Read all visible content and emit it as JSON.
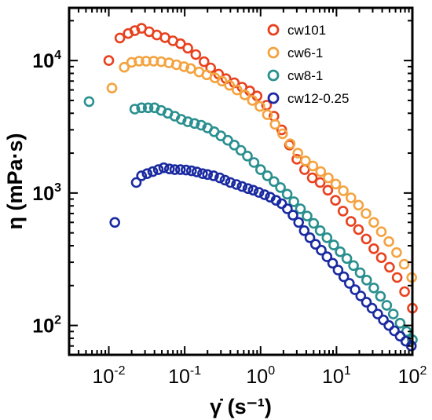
{
  "chart_data": {
    "type": "scatter",
    "title": "",
    "xlabel": "γ̇ (s⁻¹)",
    "ylabel": "η (mPa·s)",
    "xscale": "log",
    "yscale": "log",
    "xlim": [
      0.003,
      100
    ],
    "ylim": [
      60,
      25000
    ],
    "x_ticks": [
      {
        "base": "10",
        "exp": "-2"
      },
      {
        "base": "10",
        "exp": "-1"
      },
      {
        "base": "10",
        "exp": "0"
      },
      {
        "base": "10",
        "exp": "1"
      },
      {
        "base": "10",
        "exp": "2"
      }
    ],
    "y_ticks": [
      {
        "base": "10",
        "exp": "2"
      },
      {
        "base": "10",
        "exp": "3"
      },
      {
        "base": "10",
        "exp": "4"
      }
    ],
    "legend_position": "top-right",
    "grid": false,
    "series": [
      {
        "name": "cw101",
        "color": "#e8411e",
        "x": [
          0.01,
          0.014,
          0.018,
          0.022,
          0.027,
          0.034,
          0.043,
          0.055,
          0.07,
          0.088,
          0.11,
          0.14,
          0.18,
          0.22,
          0.28,
          0.35,
          0.45,
          0.57,
          0.72,
          0.9,
          1.2,
          1.5,
          1.9,
          2.4,
          3.0,
          3.8,
          4.8,
          6.1,
          7.7,
          9.7,
          12.2,
          15.5,
          19.5,
          24.7,
          31,
          39,
          50,
          63,
          79,
          100
        ],
        "y": [
          10000,
          14800,
          16000,
          16800,
          17500,
          16500,
          15600,
          14900,
          14100,
          13400,
          12400,
          11100,
          9800,
          8800,
          7900,
          7300,
          6800,
          6300,
          5900,
          5400,
          4600,
          3800,
          3000,
          2300,
          1800,
          1500,
          1300,
          1200,
          1050,
          880,
          730,
          610,
          530,
          450,
          380,
          325,
          275,
          230,
          180,
          135
        ]
      },
      {
        "name": "cw6-1",
        "color": "#f4a340",
        "x": [
          0.011,
          0.016,
          0.02,
          0.025,
          0.031,
          0.039,
          0.049,
          0.062,
          0.078,
          0.098,
          0.12,
          0.155,
          0.195,
          0.25,
          0.31,
          0.39,
          0.49,
          0.62,
          0.78,
          0.98,
          1.23,
          1.55,
          1.95,
          2.45,
          3.1,
          3.9,
          4.9,
          6.2,
          7.8,
          9.8,
          12.3,
          15.5,
          19.5,
          24.5,
          31,
          39,
          49,
          62,
          78,
          98
        ],
        "y": [
          6200,
          8900,
          9700,
          9900,
          9900,
          9900,
          9800,
          9600,
          9300,
          9000,
          8700,
          8200,
          7800,
          7400,
          7000,
          6500,
          6000,
          5500,
          5000,
          4500,
          3900,
          3300,
          2800,
          2350,
          2000,
          1750,
          1600,
          1450,
          1300,
          1170,
          1040,
          920,
          810,
          700,
          600,
          510,
          430,
          355,
          290,
          230
        ]
      },
      {
        "name": "cw8-1",
        "color": "#2a8f8f",
        "x": [
          0.0055,
          0.022,
          0.027,
          0.033,
          0.04,
          0.049,
          0.06,
          0.074,
          0.09,
          0.11,
          0.135,
          0.165,
          0.2,
          0.245,
          0.3,
          0.37,
          0.45,
          0.55,
          0.67,
          0.82,
          1.0,
          1.23,
          1.5,
          1.83,
          2.24,
          2.74,
          3.35,
          4.1,
          5.0,
          6.1,
          7.5,
          9.2,
          11.2,
          13.7,
          16.8,
          20.5,
          25,
          31,
          38,
          46,
          56,
          69,
          84,
          100
        ],
        "y": [
          4900,
          4300,
          4400,
          4400,
          4400,
          4200,
          4000,
          3800,
          3600,
          3450,
          3350,
          3250,
          3100,
          2900,
          2700,
          2500,
          2300,
          2100,
          1900,
          1700,
          1500,
          1350,
          1220,
          1100,
          980,
          860,
          760,
          670,
          590,
          520,
          460,
          405,
          360,
          320,
          283,
          250,
          220,
          192,
          166,
          142,
          122,
          104,
          90,
          78
        ]
      },
      {
        "name": "cw12-0.25",
        "color": "#1a2aa0",
        "x": [
          0.012,
          0.023,
          0.027,
          0.032,
          0.038,
          0.045,
          0.053,
          0.063,
          0.074,
          0.088,
          0.104,
          0.123,
          0.145,
          0.172,
          0.2,
          0.24,
          0.29,
          0.34,
          0.4,
          0.48,
          0.57,
          0.68,
          0.8,
          0.95,
          1.13,
          1.34,
          1.6,
          1.9,
          2.25,
          2.67,
          3.17,
          3.76,
          4.46,
          5.3,
          6.3,
          7.5,
          8.9,
          10.5,
          12.5,
          14.8,
          17.6,
          20.9,
          24.8,
          29.4,
          35,
          41.5,
          49,
          58,
          69,
          82,
          97
        ],
        "y": [
          600,
          1200,
          1350,
          1400,
          1450,
          1500,
          1550,
          1520,
          1500,
          1500,
          1490,
          1470,
          1440,
          1400,
          1380,
          1350,
          1300,
          1250,
          1200,
          1160,
          1120,
          1080,
          1050,
          1010,
          970,
          930,
          880,
          830,
          760,
          680,
          600,
          520,
          460,
          410,
          370,
          330,
          295,
          262,
          233,
          208,
          186,
          167,
          150,
          135,
          122,
          110,
          100,
          91,
          83,
          76,
          70
        ]
      }
    ]
  }
}
